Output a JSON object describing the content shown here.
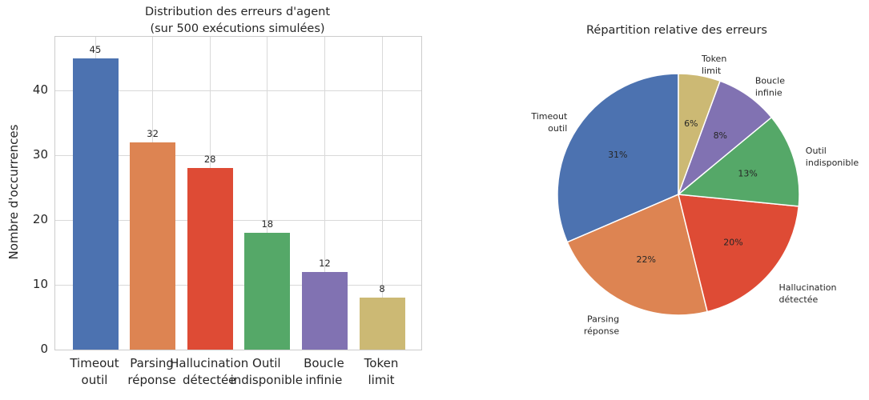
{
  "figure": {
    "background": "#ffffff",
    "text_color": "#262626"
  },
  "chart_data": [
    {
      "type": "bar",
      "title": "Distribution des erreurs d'agent\n(sur 500 exécutions simulées)",
      "ylabel": "Nombre d'occurrences",
      "categories": [
        "Timeout\noutil",
        "Parsing\nréponse",
        "Hallucination\ndétectée",
        "Outil\nindisponible",
        "Boucle\ninfinie",
        "Token\nlimit"
      ],
      "values": [
        45,
        32,
        28,
        18,
        12,
        8
      ],
      "bar_colors": [
        "#4C72B0",
        "#DD8452",
        "#DE4B35",
        "#55A868",
        "#8172B2",
        "#CCB974"
      ],
      "yticks": [
        0,
        10,
        20,
        30,
        40
      ],
      "ylim": [
        0,
        48.3
      ],
      "grid": true,
      "grid_color": "#d9d9d9",
      "spine_color": "#cccccc"
    },
    {
      "type": "pie",
      "title": "Répartition relative des erreurs",
      "labels": [
        "Timeout\noutil",
        "Parsing\nréponse",
        "Hallucination\ndétectée",
        "Outil\nindisponible",
        "Boucle\ninfinie",
        "Token\nlimit"
      ],
      "values": [
        45,
        32,
        28,
        18,
        12,
        8
      ],
      "percent_labels": [
        "31%",
        "22%",
        "20%",
        "13%",
        "8%",
        "6%"
      ],
      "colors": [
        "#4C72B0",
        "#DD8452",
        "#DE4B35",
        "#55A868",
        "#8172B2",
        "#CCB974"
      ],
      "start_angle": 90,
      "counterclock": true,
      "pct_distance": 0.6,
      "label_distance": 1.1
    }
  ]
}
